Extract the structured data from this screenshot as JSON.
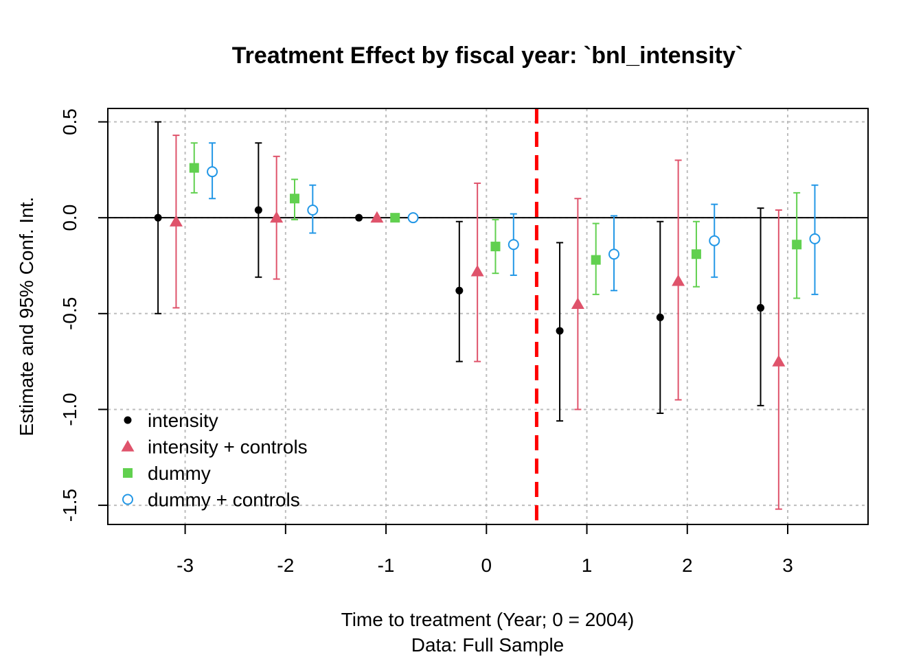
{
  "chart_data": {
    "type": "scatter",
    "title": "Treatment Effect by fiscal year: `bnl_intensity`",
    "xlabel": "Time to treatment (Year; 0 = 2004)",
    "xlabel_sub": "Data: Full Sample",
    "ylabel": "Estimate and 95% Conf. Int.",
    "x_ticks": [
      -3,
      -2,
      -1,
      0,
      1,
      2,
      3
    ],
    "x_tick_labels": [
      "-3",
      "-2",
      "-1",
      "0",
      "1",
      "2",
      "3"
    ],
    "y_ticks": [
      0.5,
      0.0,
      -0.5,
      -1.0,
      -1.5
    ],
    "y_tick_labels": [
      "0.5",
      "0.0",
      "-0.5",
      "-1.0",
      "-1.5"
    ],
    "xlim": [
      -3.77,
      3.8
    ],
    "ylim": [
      -1.6,
      0.57
    ],
    "grid": true,
    "reference_line_y": 0,
    "treatment_line_x": 0.5,
    "legend_position": "bottom-left",
    "series": [
      {
        "name": "intensity",
        "marker": "filled-circle",
        "color": "#000000",
        "bar_color": "#000000",
        "offset": -0.27,
        "points": [
          {
            "x": -3,
            "y": 0.0,
            "lo": -0.5,
            "hi": 0.5
          },
          {
            "x": -2,
            "y": 0.04,
            "lo": -0.31,
            "hi": 0.39
          },
          {
            "x": -1,
            "y": 0.0
          },
          {
            "x": 0,
            "y": -0.38,
            "lo": -0.75,
            "hi": -0.02
          },
          {
            "x": 1,
            "y": -0.59,
            "lo": -1.06,
            "hi": -0.13
          },
          {
            "x": 2,
            "y": -0.52,
            "lo": -1.02,
            "hi": -0.02
          },
          {
            "x": 3,
            "y": -0.47,
            "lo": -0.98,
            "hi": 0.05
          }
        ]
      },
      {
        "name": "intensity + controls",
        "marker": "filled-triangle",
        "color": "#DF536B",
        "bar_color": "#DF536B",
        "offset": -0.09,
        "points": [
          {
            "x": -3,
            "y": -0.02,
            "lo": -0.47,
            "hi": 0.43
          },
          {
            "x": -2,
            "y": 0.0,
            "lo": -0.32,
            "hi": 0.32
          },
          {
            "x": -1,
            "y": 0.0
          },
          {
            "x": 0,
            "y": -0.28,
            "lo": -0.75,
            "hi": 0.18
          },
          {
            "x": 1,
            "y": -0.45,
            "lo": -1.0,
            "hi": 0.1
          },
          {
            "x": 2,
            "y": -0.33,
            "lo": -0.95,
            "hi": 0.3
          },
          {
            "x": 3,
            "y": -0.75,
            "lo": -1.52,
            "hi": 0.04
          }
        ]
      },
      {
        "name": "dummy",
        "marker": "filled-square",
        "color": "#61D04F",
        "bar_color": "#61D04F",
        "offset": 0.09,
        "points": [
          {
            "x": -3,
            "y": 0.26,
            "lo": 0.13,
            "hi": 0.39
          },
          {
            "x": -2,
            "y": 0.1,
            "lo": -0.01,
            "hi": 0.2
          },
          {
            "x": -1,
            "y": 0.0
          },
          {
            "x": 0,
            "y": -0.15,
            "lo": -0.29,
            "hi": -0.01
          },
          {
            "x": 1,
            "y": -0.22,
            "lo": -0.4,
            "hi": -0.03
          },
          {
            "x": 2,
            "y": -0.19,
            "lo": -0.36,
            "hi": -0.02
          },
          {
            "x": 3,
            "y": -0.14,
            "lo": -0.42,
            "hi": 0.13
          }
        ]
      },
      {
        "name": "dummy + controls",
        "marker": "open-circle",
        "color": "#2297E6",
        "bar_color": "#2297E6",
        "offset": 0.27,
        "points": [
          {
            "x": -3,
            "y": 0.24,
            "lo": 0.1,
            "hi": 0.39
          },
          {
            "x": -2,
            "y": 0.04,
            "lo": -0.08,
            "hi": 0.17
          },
          {
            "x": -1,
            "y": 0.0
          },
          {
            "x": 0,
            "y": -0.14,
            "lo": -0.3,
            "hi": 0.02
          },
          {
            "x": 1,
            "y": -0.19,
            "lo": -0.38,
            "hi": 0.01
          },
          {
            "x": 2,
            "y": -0.12,
            "lo": -0.31,
            "hi": 0.07
          },
          {
            "x": 3,
            "y": -0.11,
            "lo": -0.4,
            "hi": 0.17
          }
        ]
      }
    ]
  }
}
